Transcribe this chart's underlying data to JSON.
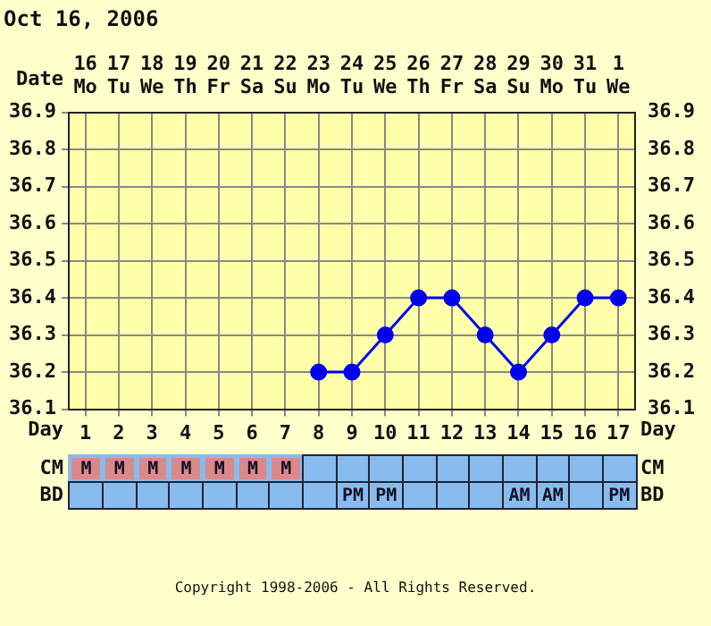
{
  "chart_data": [
    {
      "type": "line",
      "title": "Oct 16, 2006",
      "xlabel": "Day",
      "x2label": "Date",
      "x": [
        8,
        9,
        10,
        11,
        12,
        13,
        14,
        15,
        16,
        17
      ],
      "series": [
        {
          "color": "#0000ee",
          "values": [
            36.2,
            36.2,
            36.3,
            36.4,
            36.4,
            36.3,
            36.2,
            36.3,
            36.4,
            36.4
          ]
        }
      ],
      "xlim": [
        0.5,
        17.5
      ],
      "xticks": [
        1,
        2,
        3,
        4,
        5,
        6,
        7,
        8,
        9,
        10,
        11,
        12,
        13,
        14,
        15,
        16,
        17
      ],
      "x2lim": [
        "2006-10-15T12:00",
        "2006-11-01T12:00"
      ],
      "x2ticks": [
        {
          "value": "2006-10-16",
          "label": "16\nMo"
        },
        {
          "value": "2006-10-17",
          "label": "17\nTu"
        },
        {
          "value": "2006-10-18",
          "label": "18\nWe"
        },
        {
          "value": "2006-10-19",
          "label": "19\nTh"
        },
        {
          "value": "2006-10-20",
          "label": "20\nFr"
        },
        {
          "value": "2006-10-21",
          "label": "21\nSa"
        },
        {
          "value": "2006-10-22",
          "label": "22\nSu"
        },
        {
          "value": "2006-10-23",
          "label": "23\nMo"
        },
        {
          "value": "2006-10-24",
          "label": "24\nTu"
        },
        {
          "value": "2006-10-25",
          "label": "25\nWe"
        },
        {
          "value": "2006-10-26",
          "label": "26\nTh"
        },
        {
          "value": "2006-10-27",
          "label": "27\nFr"
        },
        {
          "value": "2006-10-28",
          "label": "28\nSa"
        },
        {
          "value": "2006-10-29",
          "label": "29\nSu"
        },
        {
          "value": "2006-10-30",
          "label": "30\nMo"
        },
        {
          "value": "2006-10-31",
          "label": "31\nTu"
        },
        {
          "value": "2006-11-01",
          "label": "1\nWe"
        }
      ],
      "ylim": [
        36.1,
        36.9
      ],
      "yticks": [
        36.1,
        36.2,
        36.3,
        36.4,
        36.5,
        36.6,
        36.7,
        36.8,
        36.9
      ],
      "y2lim": [
        36.1,
        36.9
      ],
      "y2ticks": [
        36.1,
        36.2,
        36.3,
        36.4,
        36.5,
        36.6,
        36.7,
        36.8,
        36.9
      ],
      "grid": true,
      "marker": "circle",
      "line_style": "solid",
      "legend": false,
      "annotations": [
        "Copyright 1998-2006 - All Rights Reserved."
      ]
    },
    {
      "type": "heatmap",
      "categories": [
        null,
        null,
        null,
        null,
        null,
        null,
        null,
        null,
        null,
        null,
        null,
        null,
        null,
        null,
        null,
        null,
        null
      ],
      "y_categories": [
        "CM",
        "BD"
      ],
      "y2_categories": [
        "CM",
        "BD"
      ],
      "cells": [
        [
          null,
          null,
          null,
          null,
          null,
          null,
          null,
          null,
          null,
          null,
          null,
          null,
          null,
          null,
          null,
          null,
          null
        ],
        [
          null,
          null,
          null,
          null,
          null,
          null,
          null,
          null,
          null,
          null,
          null,
          null,
          null,
          null,
          null,
          null,
          null
        ]
      ],
      "cell_labels": [
        [
          "M",
          "M",
          "M",
          "M",
          "M",
          "M",
          "M",
          null,
          null,
          null,
          null,
          null,
          null,
          null,
          null,
          null,
          null
        ],
        [
          null,
          null,
          null,
          null,
          null,
          null,
          null,
          null,
          "PM",
          "PM",
          null,
          null,
          null,
          "AM",
          "AM",
          null,
          "PM"
        ]
      ]
    }
  ]
}
